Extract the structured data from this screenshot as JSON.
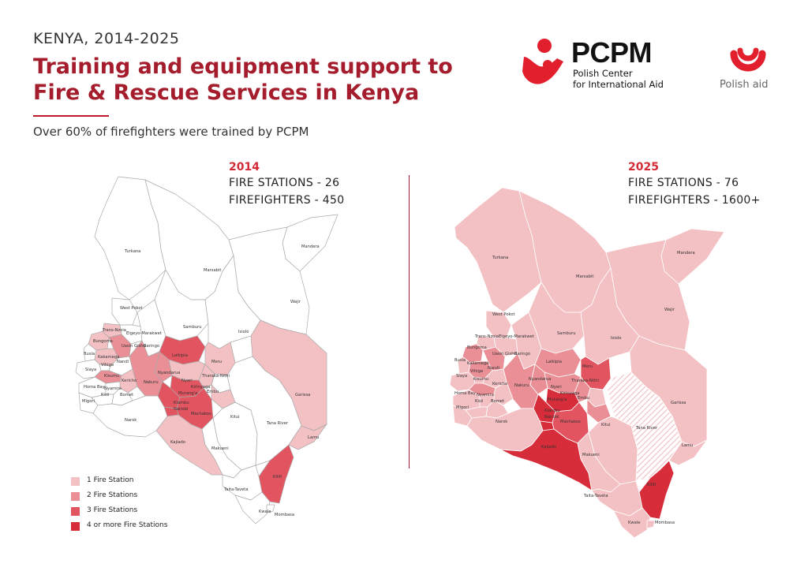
{
  "header": {
    "kicker": "KENYA, 2014-2025",
    "title": "Training and equipment support to Fire & Rescue Services in Kenya",
    "subtitle": "Over 60% of firefighters were trained by PCPM"
  },
  "logos": {
    "pcpm_name": "PCPM",
    "pcpm_line1": "Polish Center",
    "pcpm_line2": "for International Aid",
    "polish_aid": "Polish aid"
  },
  "colors": {
    "brand_dark_red": "#a51d2d",
    "accent_red": "#d32a36",
    "one_station": "#f3c1c4",
    "two_stations": "#ea8f96",
    "three_stations": "#e25560",
    "four_plus_stations": "#d72c3a",
    "no_station": "#ffffff"
  },
  "panels": {
    "y2014": {
      "year": "2014",
      "stations": "FIRE STATIONS - 26",
      "firefighters": "FIREFIGHTERS - 450"
    },
    "y2025": {
      "year": "2025",
      "stations": "FIRE STATIONS - 76",
      "firefighters": "FIREFIGHTERS - 1600+"
    }
  },
  "legend": [
    {
      "label": "1 Fire Station",
      "color": "#f3c1c4"
    },
    {
      "label": "2 Fire Stations",
      "color": "#ea8f96"
    },
    {
      "label": "3 Fire Stations",
      "color": "#e25560"
    },
    {
      "label": "4 or more Fire Stations",
      "color": "#d72c3a"
    }
  ],
  "counties": {
    "turkana": "Turkana",
    "marsabit": "Marsabit",
    "mandera": "Mandera",
    "wajir": "Wajir",
    "west_pokot": "West Pokot",
    "samburu": "Samburu",
    "isiolo": "Isiolo",
    "trans_nzoia": "Trans-Nzoia",
    "elgeyo_marakwet": "Elgeyo-Marakwet",
    "bungoma": "Bungoma",
    "uasin_gishu": "Uasin Gishu",
    "baringo": "Baringo",
    "busia": "Busia",
    "kakamega": "Kakamega",
    "vihiga": "Vihiga",
    "nandi": "Nandi",
    "laikipia": "Laikipia",
    "meru": "Meru",
    "siaya": "Siaya",
    "kisumu": "Kisumu",
    "nyandarua": "Nyandarua",
    "kericho": "Kericho",
    "tharaka_nithi": "Tharaka-Nithi",
    "nakuru": "Nakuru",
    "nyeri": "Nyeri",
    "kirinyaga": "Kirinyaga",
    "embu": "Embu",
    "homa_bay": "Homa Bay",
    "nyamira": "Nyamira",
    "muranga": "Murang'a",
    "kisii": "Kisii",
    "bomet": "Bomet",
    "kiambu": "Kiambu",
    "migori": "Migori",
    "nairobi": "Nairobi",
    "machakos": "Machakos",
    "garissa": "Garissa",
    "narok": "Narok",
    "kitui": "Kitui",
    "tana_river": "Tana River",
    "kajiado": "Kajiado",
    "lamu": "Lamu",
    "makueni": "Makueni",
    "kilifi": "Kilifi",
    "taita_taveta": "Taita-Taveta",
    "kwale": "Kwale",
    "mombasa": "Mombasa"
  },
  "counties_2025": {
    "muranga": "Murang'a"
  }
}
